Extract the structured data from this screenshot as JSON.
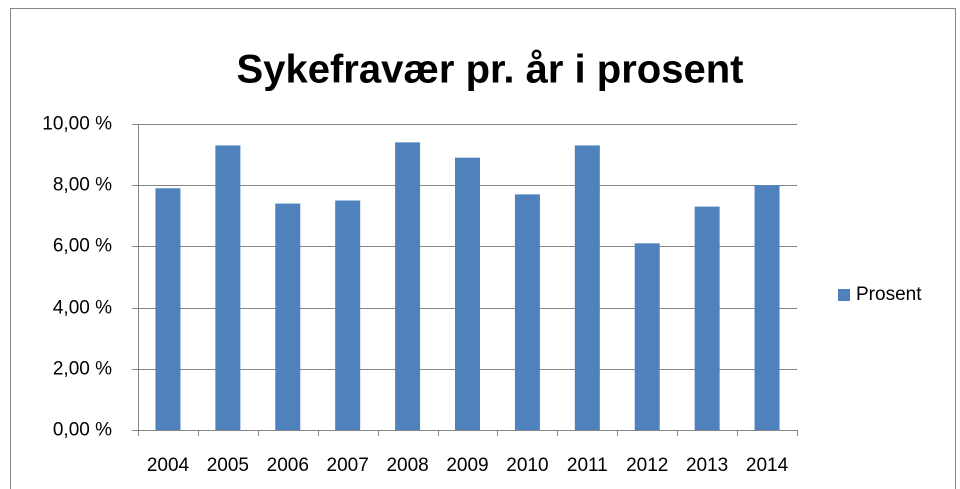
{
  "chart_data": {
    "type": "bar",
    "title": "Sykefravær pr. år i prosent",
    "categories": [
      "2004",
      "2005",
      "2006",
      "2007",
      "2008",
      "2009",
      "2010",
      "2011",
      "2012",
      "2013",
      "2014"
    ],
    "series": [
      {
        "name": "Prosent",
        "color": "#4f81bd",
        "values": [
          7.9,
          9.3,
          7.4,
          7.5,
          9.4,
          8.9,
          7.7,
          9.3,
          6.1,
          7.3,
          8.0
        ]
      }
    ],
    "ylim": [
      0,
      10
    ],
    "yticks": [
      {
        "value": 0,
        "label": "0,00 %"
      },
      {
        "value": 2,
        "label": "2,00 %"
      },
      {
        "value": 4,
        "label": "4,00 %"
      },
      {
        "value": 6,
        "label": "6,00 %"
      },
      {
        "value": 8,
        "label": "8,00 %"
      },
      {
        "value": 10,
        "label": "10,00 %"
      }
    ],
    "grid": true,
    "legend": "right"
  }
}
